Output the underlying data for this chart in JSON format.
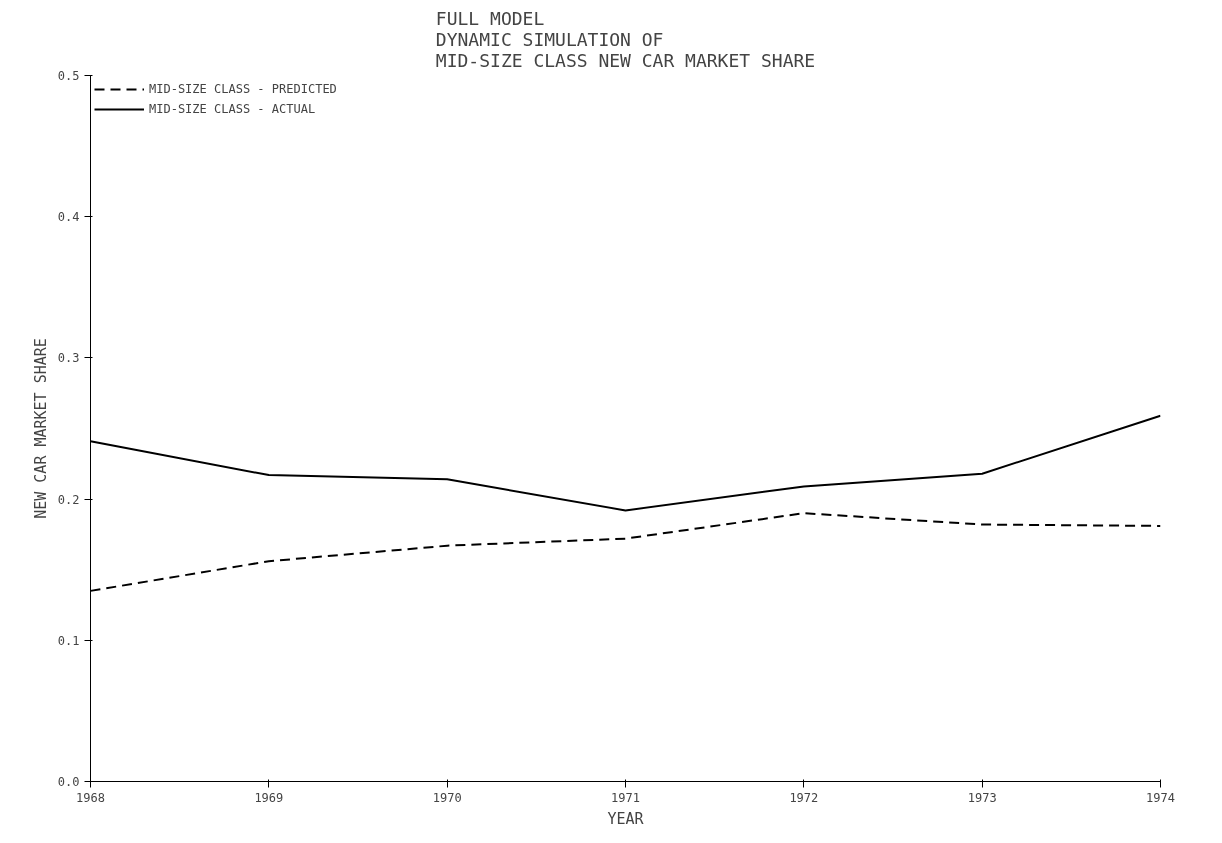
{
  "chart_data": {
    "type": "line",
    "title": "FULL MODEL\nDYNAMIC SIMULATION OF\nMID-SIZE CLASS NEW CAR MARKET SHARE",
    "xlabel": "YEAR",
    "ylabel": "NEW CAR MARKET SHARE",
    "x": [
      1968,
      1969,
      1970,
      1971,
      1972,
      1973,
      1974
    ],
    "series": [
      {
        "name": "MID-SIZE CLASS - PREDICTED",
        "color": "#000000",
        "line_style": "dashed",
        "values": [
          0.135,
          0.156,
          0.167,
          0.172,
          0.19,
          0.182,
          0.181
        ]
      },
      {
        "name": "MID-SIZE CLASS - ACTUAL",
        "color": "#000000",
        "line_style": "solid",
        "values": [
          0.241,
          0.217,
          0.214,
          0.192,
          0.209,
          0.218,
          0.259
        ]
      }
    ],
    "xlim": [
      1968,
      1974
    ],
    "xticks": [
      1968,
      1969,
      1970,
      1971,
      1972,
      1973,
      1974
    ],
    "ylim": [
      0.0,
      0.5
    ],
    "yticks": [
      {
        "value": 0.0,
        "label": "0.0"
      },
      0.1,
      0.2,
      0.3,
      0.4,
      0.5
    ],
    "grid": false,
    "legend": "top left",
    "marker": "none"
  }
}
